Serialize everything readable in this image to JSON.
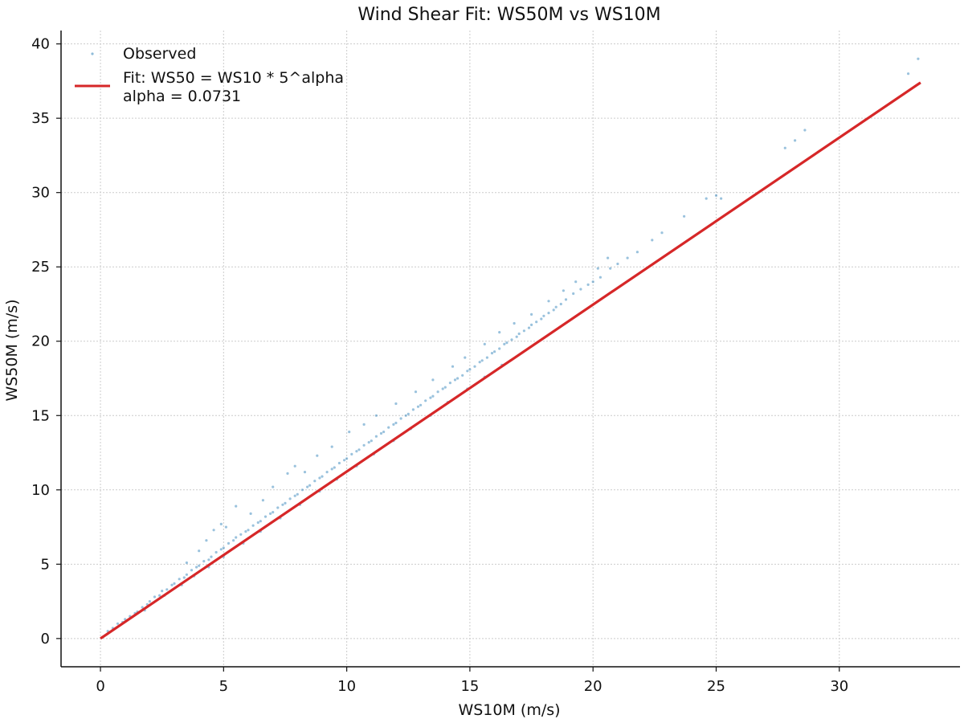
{
  "chart_data": {
    "type": "scatter",
    "title": "Wind Shear Fit: WS50M vs WS10M",
    "xlabel": "WS10M (m/s)",
    "ylabel": "WS50M (m/s)",
    "xlim": [
      -1.6,
      34.9
    ],
    "ylim": [
      -1.9,
      40.9
    ],
    "xticks": [
      0,
      5,
      10,
      15,
      20,
      25,
      30
    ],
    "yticks": [
      0,
      5,
      10,
      15,
      20,
      25,
      30,
      35,
      40
    ],
    "grid": true,
    "legend": {
      "placement": "top-left",
      "entries": [
        "Observed",
        "Fit: WS50 = WS10 * 5^alpha",
        "alpha = 0.0731"
      ]
    },
    "colors": {
      "observed": "#1f77b4",
      "fit": "#d62728"
    },
    "series": [
      {
        "name": "Observed",
        "kind": "scatter",
        "points": [
          [
            0.3,
            0.5
          ],
          [
            0.5,
            0.7
          ],
          [
            0.7,
            1.0
          ],
          [
            0.9,
            1.1
          ],
          [
            1.0,
            1.3
          ],
          [
            1.2,
            1.5
          ],
          [
            1.4,
            1.7
          ],
          [
            1.5,
            1.8
          ],
          [
            1.7,
            2.1
          ],
          [
            1.9,
            2.3
          ],
          [
            2.0,
            2.5
          ],
          [
            2.2,
            2.8
          ],
          [
            2.4,
            2.9
          ],
          [
            2.5,
            3.2
          ],
          [
            2.7,
            3.3
          ],
          [
            2.9,
            3.6
          ],
          [
            3.0,
            3.7
          ],
          [
            3.2,
            4.0
          ],
          [
            3.4,
            4.1
          ],
          [
            3.5,
            4.3
          ],
          [
            3.7,
            4.6
          ],
          [
            3.9,
            4.8
          ],
          [
            4.0,
            4.9
          ],
          [
            4.2,
            5.2
          ],
          [
            4.4,
            5.3
          ],
          [
            4.5,
            5.5
          ],
          [
            4.7,
            5.8
          ],
          [
            4.9,
            6.0
          ],
          [
            5.0,
            6.1
          ],
          [
            5.2,
            6.4
          ],
          [
            5.4,
            6.6
          ],
          [
            5.5,
            6.8
          ],
          [
            5.7,
            7.0
          ],
          [
            5.9,
            7.2
          ],
          [
            6.0,
            7.3
          ],
          [
            6.2,
            7.6
          ],
          [
            6.4,
            7.8
          ],
          [
            6.5,
            7.9
          ],
          [
            6.7,
            8.2
          ],
          [
            6.9,
            8.4
          ],
          [
            7.0,
            8.5
          ],
          [
            7.2,
            8.8
          ],
          [
            7.4,
            9.0
          ],
          [
            7.5,
            9.1
          ],
          [
            7.7,
            9.4
          ],
          [
            7.9,
            9.6
          ],
          [
            8.0,
            9.7
          ],
          [
            8.2,
            10.0
          ],
          [
            8.4,
            10.2
          ],
          [
            8.5,
            10.3
          ],
          [
            8.7,
            10.6
          ],
          [
            8.9,
            10.8
          ],
          [
            9.0,
            10.9
          ],
          [
            9.2,
            11.2
          ],
          [
            9.4,
            11.4
          ],
          [
            9.5,
            11.5
          ],
          [
            9.7,
            11.8
          ],
          [
            9.9,
            12.0
          ],
          [
            10.0,
            12.1
          ],
          [
            10.2,
            12.4
          ],
          [
            10.4,
            12.6
          ],
          [
            10.5,
            12.7
          ],
          [
            10.7,
            13.0
          ],
          [
            10.9,
            13.2
          ],
          [
            11.0,
            13.3
          ],
          [
            11.2,
            13.6
          ],
          [
            11.4,
            13.8
          ],
          [
            11.5,
            13.9
          ],
          [
            11.7,
            14.2
          ],
          [
            11.9,
            14.4
          ],
          [
            12.0,
            14.5
          ],
          [
            12.2,
            14.8
          ],
          [
            12.4,
            15.0
          ],
          [
            12.5,
            15.1
          ],
          [
            12.7,
            15.4
          ],
          [
            12.9,
            15.6
          ],
          [
            13.0,
            15.7
          ],
          [
            13.2,
            16.0
          ],
          [
            13.4,
            16.2
          ],
          [
            13.5,
            16.3
          ],
          [
            13.7,
            16.6
          ],
          [
            13.9,
            16.8
          ],
          [
            14.0,
            16.9
          ],
          [
            14.2,
            17.2
          ],
          [
            14.4,
            17.4
          ],
          [
            14.5,
            17.5
          ],
          [
            14.7,
            17.7
          ],
          [
            14.9,
            18.0
          ],
          [
            15.0,
            18.1
          ],
          [
            15.2,
            18.3
          ],
          [
            15.4,
            18.6
          ],
          [
            15.5,
            18.7
          ],
          [
            15.7,
            18.9
          ],
          [
            15.9,
            19.2
          ],
          [
            16.0,
            19.3
          ],
          [
            16.2,
            19.5
          ],
          [
            16.4,
            19.8
          ],
          [
            16.5,
            19.9
          ],
          [
            16.7,
            20.1
          ],
          [
            16.9,
            20.3
          ],
          [
            17.0,
            20.5
          ],
          [
            17.2,
            20.7
          ],
          [
            17.4,
            20.9
          ],
          [
            17.5,
            21.1
          ],
          [
            17.7,
            21.3
          ],
          [
            17.9,
            21.5
          ],
          [
            18.0,
            21.7
          ],
          [
            18.2,
            21.9
          ],
          [
            18.4,
            22.1
          ],
          [
            18.5,
            22.3
          ],
          [
            18.7,
            22.5
          ],
          [
            18.9,
            22.8
          ],
          [
            19.2,
            23.2
          ],
          [
            19.5,
            23.5
          ],
          [
            19.8,
            23.8
          ],
          [
            20.0,
            24.0
          ],
          [
            20.3,
            24.3
          ],
          [
            20.7,
            24.9
          ],
          [
            21.0,
            25.2
          ],
          [
            21.4,
            25.6
          ],
          [
            21.8,
            26.0
          ],
          [
            22.4,
            26.8
          ],
          [
            22.8,
            27.3
          ],
          [
            23.7,
            28.4
          ],
          [
            24.6,
            29.6
          ],
          [
            25.0,
            29.8
          ],
          [
            25.2,
            29.6
          ],
          [
            27.8,
            33.0
          ],
          [
            28.2,
            33.5
          ],
          [
            28.6,
            34.2
          ],
          [
            32.8,
            38.0
          ],
          [
            33.2,
            39.0
          ],
          [
            3.5,
            5.1
          ],
          [
            4.0,
            5.9
          ],
          [
            4.3,
            6.6
          ],
          [
            4.6,
            7.3
          ],
          [
            4.9,
            7.7
          ],
          [
            5.1,
            7.5
          ],
          [
            5.5,
            8.9
          ],
          [
            6.1,
            8.4
          ],
          [
            6.6,
            9.3
          ],
          [
            7.0,
            10.2
          ],
          [
            7.6,
            11.1
          ],
          [
            7.9,
            11.6
          ],
          [
            8.3,
            11.2
          ],
          [
            8.8,
            12.3
          ],
          [
            9.4,
            12.9
          ],
          [
            10.1,
            13.9
          ],
          [
            10.7,
            14.4
          ],
          [
            11.2,
            15.0
          ],
          [
            12.0,
            15.8
          ],
          [
            12.8,
            16.6
          ],
          [
            13.5,
            17.4
          ],
          [
            14.3,
            18.3
          ],
          [
            14.8,
            18.9
          ],
          [
            15.6,
            19.8
          ],
          [
            16.2,
            20.6
          ],
          [
            16.8,
            21.2
          ],
          [
            17.5,
            21.8
          ],
          [
            18.2,
            22.7
          ],
          [
            18.8,
            23.4
          ],
          [
            19.3,
            24.0
          ],
          [
            20.2,
            24.9
          ],
          [
            20.6,
            25.6
          ],
          [
            1.8,
            1.9
          ],
          [
            2.6,
            2.9
          ],
          [
            3.3,
            3.6
          ],
          [
            3.8,
            4.2
          ],
          [
            4.4,
            4.8
          ],
          [
            5.0,
            5.5
          ],
          [
            5.8,
            6.4
          ],
          [
            6.5,
            7.2
          ],
          [
            7.3,
            8.1
          ],
          [
            8.1,
            9.0
          ],
          [
            8.9,
            9.9
          ],
          [
            9.6,
            10.7
          ],
          [
            10.4,
            11.6
          ],
          [
            11.1,
            12.4
          ],
          [
            11.9,
            13.3
          ],
          [
            12.6,
            14.1
          ],
          [
            13.4,
            15.0
          ],
          [
            14.1,
            15.9
          ],
          [
            14.9,
            16.8
          ],
          [
            15.6,
            17.6
          ],
          [
            16.3,
            18.4
          ]
        ]
      },
      {
        "name": "Fit: WS50 = WS10 * 5^alpha",
        "kind": "line",
        "alpha": 0.0731,
        "points": [
          [
            0,
            0
          ],
          [
            33.3,
            37.4
          ]
        ]
      }
    ]
  }
}
